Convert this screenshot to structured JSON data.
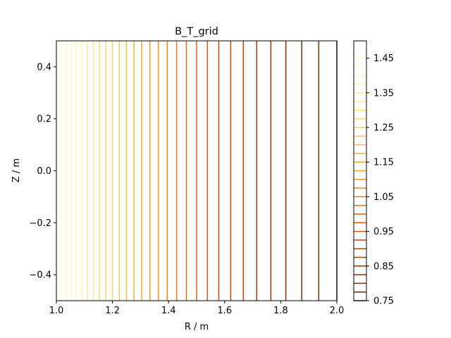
{
  "chart_data": {
    "type": "contour",
    "title": "B_T_grid",
    "xlabel": "R / m",
    "ylabel": "Z / m",
    "xlim": [
      1.0,
      2.0
    ],
    "ylim": [
      -0.5,
      0.5
    ],
    "xticks": [
      "1.0",
      "1.2",
      "1.4",
      "1.6",
      "1.8",
      "2.0"
    ],
    "xtick_values": [
      1.0,
      1.2,
      1.4,
      1.6,
      1.8,
      2.0
    ],
    "yticks": [
      "−0.4",
      "−0.2",
      "0.0",
      "0.2",
      "0.4"
    ],
    "ytick_values": [
      -0.4,
      -0.2,
      0.0,
      0.2,
      0.4
    ],
    "colorbar": {
      "min": 0.75,
      "max": 1.5,
      "ticks": [
        "0.75",
        "0.85",
        "0.95",
        "1.05",
        "1.15",
        "1.25",
        "1.35",
        "1.45"
      ],
      "tick_values": [
        0.75,
        0.85,
        0.95,
        1.05,
        1.15,
        1.25,
        1.35,
        1.45
      ]
    },
    "contour_levels": [
      0.75,
      0.775,
      0.8,
      0.825,
      0.85,
      0.875,
      0.9,
      0.925,
      0.95,
      0.975,
      1.0,
      1.025,
      1.05,
      1.075,
      1.1,
      1.125,
      1.15,
      1.175,
      1.2,
      1.225,
      1.25,
      1.275,
      1.3,
      1.325,
      1.35,
      1.375,
      1.4,
      1.425,
      1.45,
      1.475,
      1.5
    ],
    "field": "B_T = 1.5 / R",
    "colormap": "YlOrBr_r"
  }
}
